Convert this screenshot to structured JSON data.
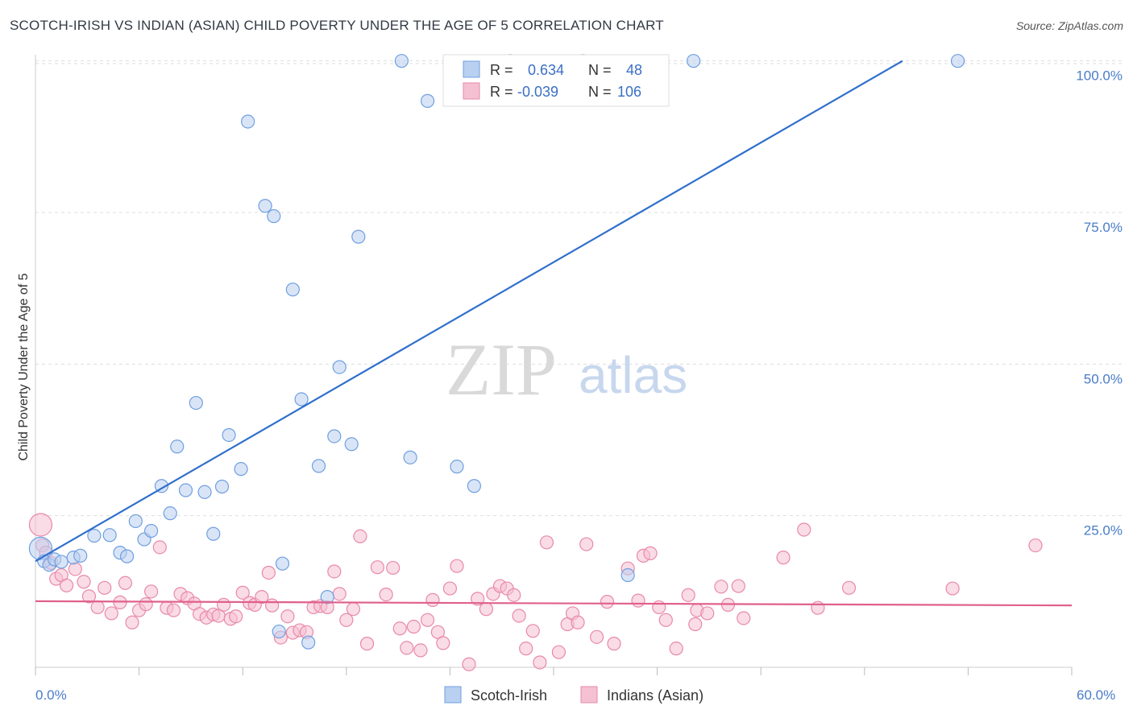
{
  "header": {
    "title": "SCOTCH-IRISH VS INDIAN (ASIAN) CHILD POVERTY UNDER THE AGE OF 5 CORRELATION CHART",
    "source": "Source: ZipAtlas.com"
  },
  "watermark": {
    "zip": "ZIP",
    "atlas": "atlas"
  },
  "stats_legend": {
    "r_label": "R =",
    "n_label": "N =",
    "rows": [
      {
        "r": "0.634",
        "n": "48"
      },
      {
        "r": "-0.039",
        "n": "106"
      }
    ]
  },
  "chart_data": {
    "type": "scatter",
    "title": "SCOTCH-IRISH VS INDIAN (ASIAN) CHILD POVERTY UNDER THE AGE OF 5 CORRELATION CHART",
    "xlabel": "",
    "ylabel": "Child Poverty Under the Age of 5",
    "xlim": [
      0,
      60
    ],
    "ylim": [
      0,
      105
    ],
    "x_ticks": [
      "0.0%",
      "60.0%"
    ],
    "y_ticks": [
      "25.0%",
      "50.0%",
      "75.0%",
      "100.0%"
    ],
    "y_tick_values": [
      25,
      50,
      75,
      100
    ],
    "grid": true,
    "legend_position": "bottom",
    "series": [
      {
        "name": "Scotch-Irish",
        "color": "#6f9fe0",
        "fill": "#b9d0f1",
        "trend": {
          "x0": 0,
          "y0": 17.5,
          "x1": 50.2,
          "y1": 100
        },
        "points": [
          [
            0.3,
            19.6
          ],
          [
            0.5,
            17.5
          ],
          [
            0.8,
            16.9
          ],
          [
            1.1,
            17.8
          ],
          [
            1.5,
            17.4
          ],
          [
            2.2,
            18.1
          ],
          [
            2.6,
            18.4
          ],
          [
            3.4,
            21.7
          ],
          [
            4.3,
            21.8
          ],
          [
            4.9,
            18.9
          ],
          [
            5.3,
            18.3
          ],
          [
            5.8,
            24.1
          ],
          [
            6.3,
            21.1
          ],
          [
            6.7,
            22.5
          ],
          [
            7.3,
            29.9
          ],
          [
            7.8,
            25.4
          ],
          [
            8.2,
            36.4
          ],
          [
            8.7,
            29.2
          ],
          [
            9.3,
            43.6
          ],
          [
            9.8,
            28.9
          ],
          [
            10.3,
            22.0
          ],
          [
            10.8,
            29.8
          ],
          [
            11.2,
            38.3
          ],
          [
            11.9,
            32.7
          ],
          [
            12.3,
            90.0
          ],
          [
            13.3,
            76.1
          ],
          [
            13.8,
            74.4
          ],
          [
            14.1,
            5.9
          ],
          [
            14.3,
            17.1
          ],
          [
            14.9,
            62.3
          ],
          [
            15.4,
            44.2
          ],
          [
            15.8,
            4.1
          ],
          [
            16.4,
            33.2
          ],
          [
            16.9,
            11.6
          ],
          [
            17.3,
            38.1
          ],
          [
            17.6,
            49.5
          ],
          [
            18.3,
            36.8
          ],
          [
            18.7,
            71.0
          ],
          [
            21.2,
            100.0
          ],
          [
            21.7,
            34.6
          ],
          [
            22.7,
            93.4
          ],
          [
            24.4,
            33.1
          ],
          [
            25.4,
            29.9
          ],
          [
            27.5,
            100.0
          ],
          [
            34.3,
            15.2
          ],
          [
            38.1,
            100.0
          ],
          [
            53.4,
            100.0
          ],
          [
            31.7,
            100.0
          ]
        ]
      },
      {
        "name": "Indians (Asian)",
        "color": "#e889a8",
        "fill": "#f5c0d2",
        "trend": {
          "x0": 0,
          "y0": 10.9,
          "x1": 60,
          "y1": 10.2
        },
        "points": [
          [
            0.3,
            23.5
          ],
          [
            0.4,
            20.1
          ],
          [
            0.6,
            18.9
          ],
          [
            0.9,
            17.2
          ],
          [
            1.2,
            14.6
          ],
          [
            1.5,
            15.2
          ],
          [
            1.8,
            13.5
          ],
          [
            2.3,
            16.2
          ],
          [
            2.8,
            14.1
          ],
          [
            3.1,
            11.7
          ],
          [
            3.6,
            9.9
          ],
          [
            4.0,
            13.1
          ],
          [
            4.4,
            8.9
          ],
          [
            4.9,
            10.7
          ],
          [
            5.2,
            13.9
          ],
          [
            5.6,
            7.4
          ],
          [
            6.0,
            9.4
          ],
          [
            6.4,
            10.4
          ],
          [
            6.7,
            12.5
          ],
          [
            7.2,
            19.8
          ],
          [
            7.6,
            9.8
          ],
          [
            8.0,
            9.4
          ],
          [
            8.4,
            12.1
          ],
          [
            8.8,
            11.4
          ],
          [
            9.2,
            10.5
          ],
          [
            9.5,
            8.8
          ],
          [
            9.9,
            8.2
          ],
          [
            10.3,
            8.7
          ],
          [
            10.6,
            8.5
          ],
          [
            10.9,
            10.3
          ],
          [
            11.3,
            8.0
          ],
          [
            11.6,
            8.4
          ],
          [
            12.0,
            12.3
          ],
          [
            12.4,
            10.6
          ],
          [
            12.7,
            10.3
          ],
          [
            13.1,
            11.6
          ],
          [
            13.5,
            15.6
          ],
          [
            13.7,
            10.2
          ],
          [
            14.2,
            4.9
          ],
          [
            14.6,
            8.4
          ],
          [
            14.9,
            5.7
          ],
          [
            15.3,
            6.1
          ],
          [
            15.7,
            5.8
          ],
          [
            16.1,
            9.9
          ],
          [
            16.5,
            10.1
          ],
          [
            16.9,
            9.9
          ],
          [
            17.3,
            15.8
          ],
          [
            17.6,
            12.1
          ],
          [
            18.0,
            7.8
          ],
          [
            18.4,
            9.6
          ],
          [
            18.8,
            21.6
          ],
          [
            19.2,
            3.9
          ],
          [
            19.8,
            16.5
          ],
          [
            20.3,
            12.0
          ],
          [
            20.7,
            16.4
          ],
          [
            21.1,
            6.4
          ],
          [
            21.5,
            3.2
          ],
          [
            21.9,
            6.7
          ],
          [
            22.3,
            2.8
          ],
          [
            22.7,
            7.8
          ],
          [
            23.0,
            11.1
          ],
          [
            23.3,
            5.8
          ],
          [
            23.6,
            4.0
          ],
          [
            24.0,
            13.0
          ],
          [
            24.4,
            16.7
          ],
          [
            25.1,
            0.5
          ],
          [
            25.6,
            11.3
          ],
          [
            26.1,
            9.6
          ],
          [
            26.5,
            12.1
          ],
          [
            26.9,
            13.4
          ],
          [
            27.3,
            13.0
          ],
          [
            27.7,
            11.9
          ],
          [
            28.0,
            8.5
          ],
          [
            28.4,
            3.1
          ],
          [
            28.8,
            6.0
          ],
          [
            29.2,
            0.8
          ],
          [
            29.6,
            20.6
          ],
          [
            30.3,
            2.5
          ],
          [
            30.8,
            7.1
          ],
          [
            31.1,
            8.9
          ],
          [
            31.4,
            7.4
          ],
          [
            31.9,
            20.3
          ],
          [
            32.5,
            5.0
          ],
          [
            33.1,
            10.8
          ],
          [
            33.5,
            3.9
          ],
          [
            34.3,
            16.3
          ],
          [
            34.9,
            11.0
          ],
          [
            35.2,
            18.4
          ],
          [
            35.6,
            18.8
          ],
          [
            36.1,
            9.9
          ],
          [
            36.5,
            7.8
          ],
          [
            37.1,
            3.1
          ],
          [
            37.8,
            11.9
          ],
          [
            38.2,
            7.1
          ],
          [
            38.3,
            9.4
          ],
          [
            38.9,
            8.9
          ],
          [
            39.7,
            13.3
          ],
          [
            40.1,
            10.3
          ],
          [
            40.7,
            13.4
          ],
          [
            41.0,
            8.1
          ],
          [
            44.5,
            22.7
          ],
          [
            45.3,
            9.8
          ],
          [
            47.1,
            13.1
          ],
          [
            57.9,
            20.1
          ],
          [
            43.3,
            18.1
          ],
          [
            53.1,
            13.0
          ]
        ]
      }
    ]
  }
}
